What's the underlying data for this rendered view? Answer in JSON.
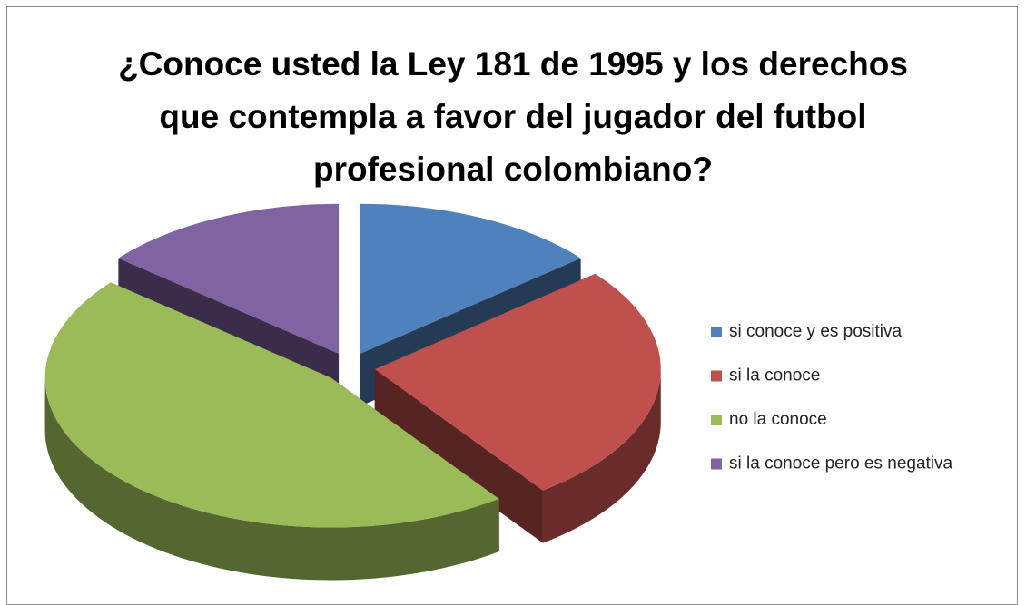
{
  "chart_data": {
    "type": "pie3d",
    "title": "¿Conoce usted la Ley 181 de 1995 y los derechos que contempla a favor del jugador del futbol profesional colombiano?",
    "categories": [
      "si conoce y es positiva",
      "si la conoce",
      "no la conoce",
      "si la conoce pero es negativa"
    ],
    "values": [
      14,
      26,
      46,
      14
    ],
    "colors": [
      "#4f81bd",
      "#c0504d",
      "#9bbb59",
      "#8064a2"
    ],
    "legend": "right"
  }
}
